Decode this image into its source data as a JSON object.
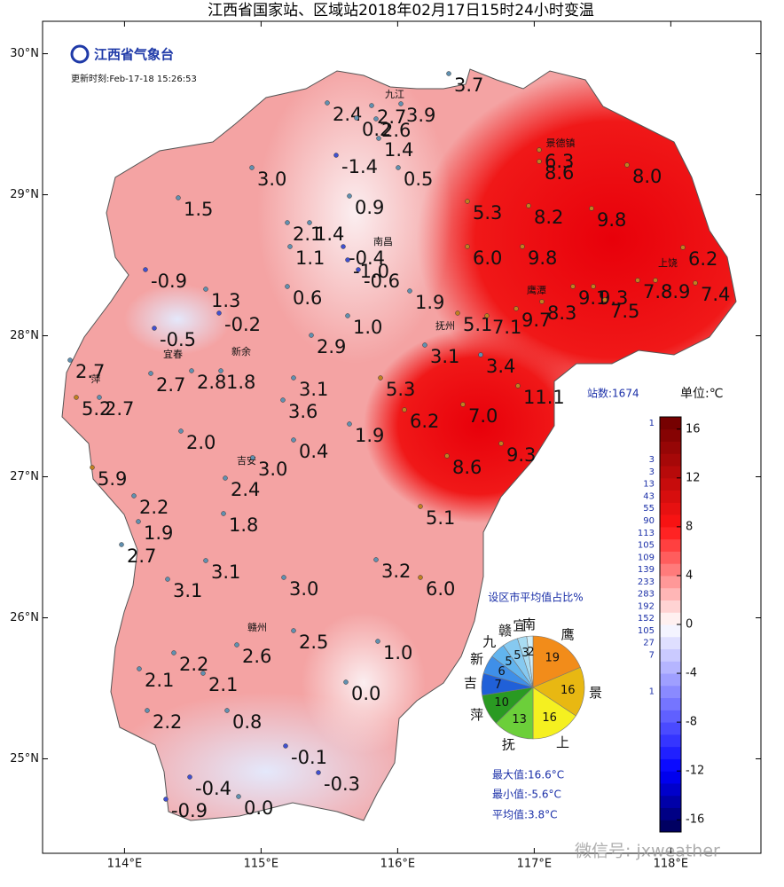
{
  "header": {
    "title": "江西省国家站、区域站2018年02月17日15时24小时变温",
    "logo": "江西省气象台",
    "update_time": "更新时刻:Feb-17-18 15:26:53"
  },
  "map": {
    "xlim": [
      113.4,
      118.66
    ],
    "ylim": [
      24.33,
      30.23
    ],
    "xticks": [
      {
        "value": 114,
        "label": "114°E"
      },
      {
        "value": 115,
        "label": "115°E"
      },
      {
        "value": 116,
        "label": "116°E"
      },
      {
        "value": 117,
        "label": "117°E"
      },
      {
        "value": 118,
        "label": "118°E"
      }
    ],
    "yticks": [
      {
        "value": 25,
        "label": "25°N"
      },
      {
        "value": 26,
        "label": "26°N"
      },
      {
        "value": 27,
        "label": "27°N"
      },
      {
        "value": 28,
        "label": "28°N"
      },
      {
        "value": 29,
        "label": "29°N"
      },
      {
        "value": 30,
        "label": "30°N"
      }
    ],
    "cities": [
      "九江",
      "景德镇",
      "南昌",
      "上饶",
      "鹰潭",
      "抚州",
      "宜春",
      "新余",
      "萍",
      "吉安",
      "赣州"
    ],
    "stations": [
      {
        "value": 3.7,
        "label": "3.7"
      },
      {
        "value": 2.4,
        "label": "2.4"
      },
      {
        "value": 2.7,
        "label": "2.7"
      },
      {
        "value": 3.9,
        "label": "3.9"
      },
      {
        "value": 0.2,
        "label": "0.2"
      },
      {
        "value": 2.6,
        "label": "2.6"
      },
      {
        "value": 1.4,
        "label": "1.4"
      },
      {
        "value": -1.4,
        "label": "-1.4"
      },
      {
        "value": 0.5,
        "label": "0.5"
      },
      {
        "value": 3,
        "label": "3.0"
      },
      {
        "value": 1.5,
        "label": "1.5"
      },
      {
        "value": 0.9,
        "label": "0.9"
      },
      {
        "value": 2.1,
        "label": "2.1"
      },
      {
        "value": 1.4,
        "label": "1.4"
      },
      {
        "value": 1.1,
        "label": "1.1"
      },
      {
        "value": -0.4,
        "label": "-0.4"
      },
      {
        "value": -1,
        "label": "-1.0"
      },
      {
        "value": -0.6,
        "label": "-0.6"
      },
      {
        "value": -0.9,
        "label": "-0.9"
      },
      {
        "value": 1.3,
        "label": "1.3"
      },
      {
        "value": 0.6,
        "label": "0.6"
      },
      {
        "value": 1.9,
        "label": "1.9"
      },
      {
        "value": -0.2,
        "label": "-0.2"
      },
      {
        "value": 1,
        "label": "1.0"
      },
      {
        "value": -0.5,
        "label": "-0.5"
      },
      {
        "value": 2.9,
        "label": "2.9"
      },
      {
        "value": 3.1,
        "label": "3.1"
      },
      {
        "value": 2.7,
        "label": "2.7"
      },
      {
        "value": 2.7,
        "label": "2.7"
      },
      {
        "value": 2.8,
        "label": "2.8"
      },
      {
        "value": 1.8,
        "label": "1.8"
      },
      {
        "value": 3.1,
        "label": "3.1"
      },
      {
        "value": 5.3,
        "label": "5.3"
      },
      {
        "value": 3.6,
        "label": "3.6"
      },
      {
        "value": 5.2,
        "label": "5.2"
      },
      {
        "value": 2.7,
        "label": "2.7"
      },
      {
        "value": 6.2,
        "label": "6.2"
      },
      {
        "value": 7,
        "label": "7.0"
      },
      {
        "value": 1.9,
        "label": "1.9"
      },
      {
        "value": 2,
        "label": "2.0"
      },
      {
        "value": 0.4,
        "label": "0.4"
      },
      {
        "value": 9.3,
        "label": "9.3"
      },
      {
        "value": 3,
        "label": "3.0"
      },
      {
        "value": 8.6,
        "label": "8.6"
      },
      {
        "value": 5.9,
        "label": "5.9"
      },
      {
        "value": 2.4,
        "label": "2.4"
      },
      {
        "value": 2.2,
        "label": "2.2"
      },
      {
        "value": 5.1,
        "label": "5.1"
      },
      {
        "value": 1.9,
        "label": "1.9"
      },
      {
        "value": 1.8,
        "label": "1.8"
      },
      {
        "value": 2.7,
        "label": "2.7"
      },
      {
        "value": 3.1,
        "label": "3.1"
      },
      {
        "value": 3.2,
        "label": "3.2"
      },
      {
        "value": 3.1,
        "label": "3.1"
      },
      {
        "value": 3,
        "label": "3.0"
      },
      {
        "value": 6,
        "label": "6.0"
      },
      {
        "value": 2.6,
        "label": "2.6"
      },
      {
        "value": 2.5,
        "label": "2.5"
      },
      {
        "value": 1,
        "label": "1.0"
      },
      {
        "value": 2.2,
        "label": "2.2"
      },
      {
        "value": 2.1,
        "label": "2.1"
      },
      {
        "value": 2.1,
        "label": "2.1"
      },
      {
        "value": 0,
        "label": "0.0"
      },
      {
        "value": 2.2,
        "label": "2.2"
      },
      {
        "value": 0.8,
        "label": "0.8"
      },
      {
        "value": -0.1,
        "label": "-0.1"
      },
      {
        "value": -0.3,
        "label": "-0.3"
      },
      {
        "value": -0.4,
        "label": "-0.4"
      },
      {
        "value": -0.9,
        "label": "-0.9"
      },
      {
        "value": 0,
        "label": "0.0"
      },
      {
        "value": 6.3,
        "label": "6.3"
      },
      {
        "value": 8.6,
        "label": "8.6"
      },
      {
        "value": 8,
        "label": "8.0"
      },
      {
        "value": 5.3,
        "label": "5.3"
      },
      {
        "value": 8.2,
        "label": "8.2"
      },
      {
        "value": 9.8,
        "label": "9.8"
      },
      {
        "value": 6,
        "label": "6.0"
      },
      {
        "value": 9.8,
        "label": "9.8"
      },
      {
        "value": 6.2,
        "label": "6.2"
      },
      {
        "value": 9.1,
        "label": "9.1"
      },
      {
        "value": 9.3,
        "label": "9.3"
      },
      {
        "value": 7.8,
        "label": "7.8"
      },
      {
        "value": 8.9,
        "label": "8.9"
      },
      {
        "value": 7.4,
        "label": "7.4"
      },
      {
        "value": 7.5,
        "label": "7.5"
      },
      {
        "value": 8.3,
        "label": "8.3"
      },
      {
        "value": 5.1,
        "label": "5.1"
      },
      {
        "value": 7.1,
        "label": "7.1"
      },
      {
        "value": 9.7,
        "label": "9.7"
      },
      {
        "value": 3.4,
        "label": "3.4"
      },
      {
        "value": 11.1,
        "label": "11.1"
      }
    ]
  },
  "colorbar": {
    "station_count": "站数:1674",
    "unit": "单位:℃",
    "clim": [
      -17,
      17
    ],
    "ticks": [
      -16,
      -12,
      -8,
      -4,
      0,
      4,
      8,
      12,
      16
    ],
    "bins": [
      {
        "level": 16,
        "count": 1
      },
      {
        "level": 13,
        "count": 3
      },
      {
        "level": 12,
        "count": 3
      },
      {
        "level": 11,
        "count": 13
      },
      {
        "level": 10,
        "count": 43
      },
      {
        "level": 9,
        "count": 55
      },
      {
        "level": 8,
        "count": 90
      },
      {
        "level": 7,
        "count": 113
      },
      {
        "level": 6,
        "count": 105
      },
      {
        "level": 5,
        "count": 109
      },
      {
        "level": 4,
        "count": 139
      },
      {
        "level": 3,
        "count": 233
      },
      {
        "level": 2,
        "count": 283
      },
      {
        "level": 1,
        "count": 192
      },
      {
        "level": 0,
        "count": 152
      },
      {
        "level": -1,
        "count": 105
      },
      {
        "level": -2,
        "count": 27
      },
      {
        "level": -3,
        "count": 7
      },
      {
        "level": -6,
        "count": 1
      }
    ]
  },
  "pie": {
    "type": "pie",
    "title": "设区市平均值占比%",
    "slices": [
      {
        "name": "鹰",
        "value": 19,
        "color": "#f28c1a"
      },
      {
        "name": "景",
        "value": 16,
        "color": "#e8b812"
      },
      {
        "name": "上",
        "value": 16,
        "color": "#f5f020"
      },
      {
        "name": "抚",
        "value": 13,
        "color": "#6ccf3a"
      },
      {
        "name": "萍",
        "value": 10,
        "color": "#2a9a22"
      },
      {
        "name": "吉",
        "value": 7,
        "color": "#2060d8"
      },
      {
        "name": "新",
        "value": 6,
        "color": "#3f8fe8"
      },
      {
        "name": "九",
        "value": 5,
        "color": "#62b4ee"
      },
      {
        "name": "赣",
        "value": 5,
        "color": "#86c9f0"
      },
      {
        "name": "宜",
        "value": 3,
        "color": "#a9dcf2"
      },
      {
        "name": "南",
        "value": 2,
        "color": "#cfeefa"
      }
    ]
  },
  "stats": [
    "最大值:16.6°C",
    "最小值:-5.6°C",
    "平均值:3.8°C"
  ],
  "watermark": "微信号: jxweather"
}
